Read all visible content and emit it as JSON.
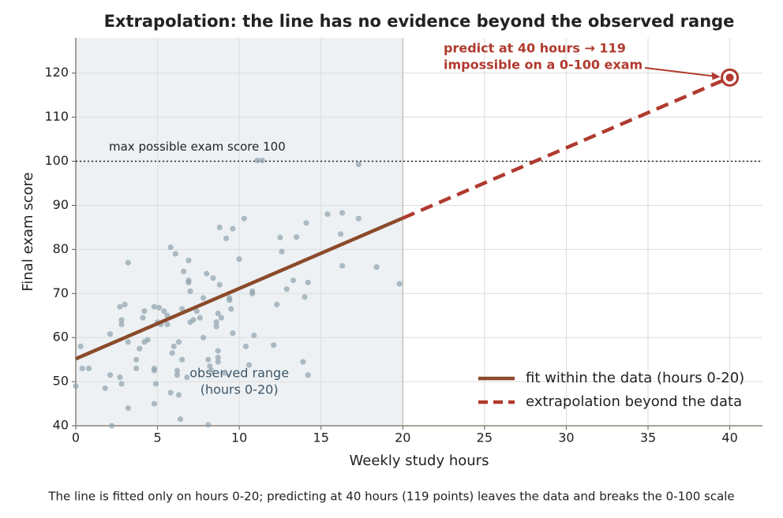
{
  "chart_data": {
    "type": "scatter",
    "title": "Extrapolation: the line has no evidence beyond the observed range",
    "xlabel": "Weekly study hours",
    "ylabel": "Final exam score",
    "caption": "The line is fitted only on hours 0-20; predicting at 40 hours (119 points) leaves the data and breaks the 0-100 scale",
    "xlim": [
      0,
      42
    ],
    "ylim": [
      40,
      128
    ],
    "xticks": [
      0,
      5,
      10,
      15,
      20,
      25,
      30,
      35,
      40
    ],
    "yticks": [
      40,
      50,
      60,
      70,
      80,
      90,
      100,
      110,
      120
    ],
    "grid": true,
    "legend": "lower right",
    "points": {
      "color": "#8fa3ad",
      "x": [
        0,
        0.3,
        0.4,
        0.8,
        1.8,
        2.1,
        2.1,
        2.2,
        2.7,
        2.7,
        2.8,
        2.8,
        2.8,
        3,
        3.2,
        3.2,
        3.2,
        3.7,
        3.7,
        3.9,
        4.1,
        4.2,
        4.2,
        4.4,
        4.8,
        4.8,
        4.8,
        4.8,
        4.9,
        5,
        5.1,
        5.2,
        5.4,
        5.6,
        5.6,
        5.8,
        5.8,
        5.9,
        6,
        6.1,
        6.2,
        6.2,
        6.3,
        6.4,
        6.3,
        6.5,
        6.5,
        6.6,
        6.8,
        6.9,
        6.9,
        6.9,
        7,
        7,
        7.2,
        7.4,
        7.6,
        7.8,
        7.8,
        8,
        8.1,
        8.1,
        8.2,
        8.3,
        8.4,
        8.6,
        8.6,
        8.7,
        8.7,
        8.7,
        8.7,
        8.8,
        8.8,
        8.9,
        9.1,
        9.2,
        9.4,
        9.4,
        9.5,
        9.6,
        9.6,
        10,
        10.3,
        10.4,
        10.6,
        10.8,
        10.8,
        10.9,
        11.1,
        11.4,
        12.1,
        12.3,
        12.5,
        12.6,
        12.9,
        13.3,
        13.5,
        13.9,
        14,
        14.1,
        14.2,
        14.2,
        15.4,
        16.2,
        16.3,
        16.3,
        17.3,
        17.3,
        18.4,
        19.8
      ],
      "values": [
        49,
        58,
        53,
        53,
        48.5,
        51.5,
        60.8,
        40,
        51,
        67,
        64,
        63,
        49.5,
        67.5,
        44,
        59,
        77,
        55,
        53,
        57.5,
        64.5,
        66,
        59,
        59.5,
        67,
        45,
        53,
        52.5,
        49.5,
        63.5,
        66.8,
        63,
        66,
        63,
        65,
        80.5,
        47.5,
        56.5,
        58,
        79,
        52.5,
        51.5,
        47,
        41.5,
        59,
        66.5,
        55,
        75,
        51,
        77.5,
        73,
        72.5,
        70.5,
        63.5,
        64,
        66,
        64.5,
        69,
        60,
        74.5,
        40.2,
        55,
        53.5,
        52.5,
        73.5,
        63.5,
        62.5,
        65.5,
        55.5,
        57,
        54.5,
        85,
        72,
        64.5,
        52,
        82.5,
        68.5,
        69,
        66.5,
        61,
        84.7,
        77.8,
        87,
        58,
        53.8,
        70.5,
        70,
        60.5,
        100.2,
        100.2,
        58.3,
        67.5,
        82.7,
        79.5,
        71,
        73,
        82.8,
        54.5,
        69.2,
        86,
        72.5,
        51.5,
        88,
        83.5,
        88.3,
        76.3,
        87,
        99.3,
        76,
        72.2
      ]
    },
    "series": [
      {
        "name": "fit within the data (hours 0-20)",
        "color": "#8b4a2b",
        "style": "solid",
        "x": [
          0,
          20
        ],
        "values": [
          55.2,
          87.1
        ]
      },
      {
        "name": "extrapolation beyond the data",
        "color": "#b03a2e",
        "style": "dashed",
        "x": [
          20,
          40
        ],
        "values": [
          87.1,
          119
        ]
      }
    ],
    "reference_line": {
      "value": 100,
      "label": "max possible exam score 100"
    },
    "shaded_range": {
      "x": [
        0,
        20
      ],
      "label": [
        "observed range",
        "(hours 0-20)"
      ]
    },
    "prediction": {
      "x": 40,
      "value": 119,
      "color": "#b03a2e",
      "label": [
        "predict at 40 hours → 119",
        "impossible on a 0-100 exam"
      ]
    }
  }
}
